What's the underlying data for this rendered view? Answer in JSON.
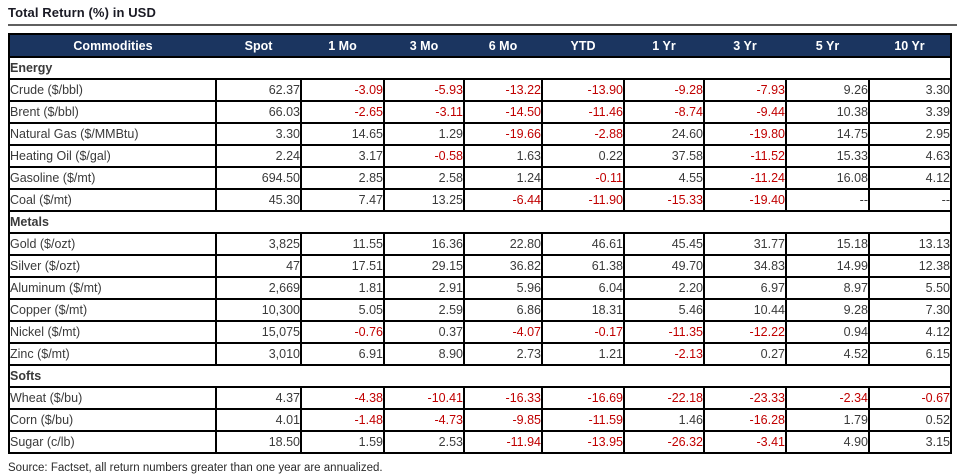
{
  "title": "Total Return (%) in USD",
  "source": "Source: Factset, all return numbers greater than one year are annualized.",
  "colors": {
    "header_bg": "#1B3560",
    "header_text": "#FFFFFF",
    "section_bg": "#D9D9D9",
    "value_text": "#3A3A3A",
    "negative_text": "#C00000",
    "border": "#000000"
  },
  "chart_data": {
    "type": "table",
    "title": "Total Return (%) in USD",
    "columns": [
      "Commodities",
      "Spot",
      "1 Mo",
      "3 Mo",
      "6 Mo",
      "YTD",
      "1 Yr",
      "3 Yr",
      "5 Yr",
      "10 Yr"
    ],
    "sections": [
      {
        "name": "Energy",
        "rows": [
          {
            "label": "Crude ($/bbl)",
            "values": [
              "62.37",
              "-3.09",
              "-5.93",
              "-13.22",
              "-13.90",
              "-9.28",
              "-7.93",
              "9.26",
              "3.30"
            ]
          },
          {
            "label": "Brent ($/bbl)",
            "values": [
              "66.03",
              "-2.65",
              "-3.11",
              "-14.50",
              "-11.46",
              "-8.74",
              "-9.44",
              "10.38",
              "3.39"
            ]
          },
          {
            "label": "Natural Gas ($/MMBtu)",
            "values": [
              "3.30",
              "14.65",
              "1.29",
              "-19.66",
              "-2.88",
              "24.60",
              "-19.80",
              "14.75",
              "2.95"
            ]
          },
          {
            "label": "Heating Oil ($/gal)",
            "values": [
              "2.24",
              "3.17",
              "-0.58",
              "1.63",
              "0.22",
              "37.58",
              "-11.52",
              "15.33",
              "4.63"
            ]
          },
          {
            "label": "Gasoline ($/mt)",
            "values": [
              "694.50",
              "2.85",
              "2.58",
              "1.24",
              "-0.11",
              "4.55",
              "-11.24",
              "16.08",
              "4.12"
            ]
          },
          {
            "label": "Coal ($/mt)",
            "values": [
              "45.30",
              "7.47",
              "13.25",
              "-6.44",
              "-11.90",
              "-15.33",
              "-19.40",
              "--",
              "--"
            ]
          }
        ]
      },
      {
        "name": "Metals",
        "rows": [
          {
            "label": "Gold ($/ozt)",
            "values": [
              "3,825",
              "11.55",
              "16.36",
              "22.80",
              "46.61",
              "45.45",
              "31.77",
              "15.18",
              "13.13"
            ]
          },
          {
            "label": "Silver ($/ozt)",
            "values": [
              "47",
              "17.51",
              "29.15",
              "36.82",
              "61.38",
              "49.70",
              "34.83",
              "14.99",
              "12.38"
            ]
          },
          {
            "label": "Aluminum ($/mt)",
            "values": [
              "2,669",
              "1.81",
              "2.91",
              "5.96",
              "6.04",
              "2.20",
              "6.97",
              "8.97",
              "5.50"
            ]
          },
          {
            "label": "Copper ($/mt)",
            "values": [
              "10,300",
              "5.05",
              "2.59",
              "6.86",
              "18.31",
              "5.46",
              "10.44",
              "9.28",
              "7.30"
            ]
          },
          {
            "label": "Nickel ($/mt)",
            "values": [
              "15,075",
              "-0.76",
              "0.37",
              "-4.07",
              "-0.17",
              "-11.35",
              "-12.22",
              "0.94",
              "4.12"
            ]
          },
          {
            "label": "Zinc ($/mt)",
            "values": [
              "3,010",
              "6.91",
              "8.90",
              "2.73",
              "1.21",
              "-2.13",
              "0.27",
              "4.52",
              "6.15"
            ]
          }
        ]
      },
      {
        "name": "Softs",
        "rows": [
          {
            "label": "Wheat ($/bu)",
            "values": [
              "4.37",
              "-4.38",
              "-10.41",
              "-16.33",
              "-16.69",
              "-22.18",
              "-23.33",
              "-2.34",
              "-0.67"
            ]
          },
          {
            "label": "Corn ($/bu)",
            "values": [
              "4.01",
              "-1.48",
              "-4.73",
              "-9.85",
              "-11.59",
              "1.46",
              "-16.28",
              "1.79",
              "0.52"
            ]
          },
          {
            "label": "Sugar (c/lb)",
            "values": [
              "18.50",
              "1.59",
              "2.53",
              "-11.94",
              "-13.95",
              "-26.32",
              "-3.41",
              "4.90",
              "3.15"
            ]
          }
        ]
      }
    ]
  }
}
